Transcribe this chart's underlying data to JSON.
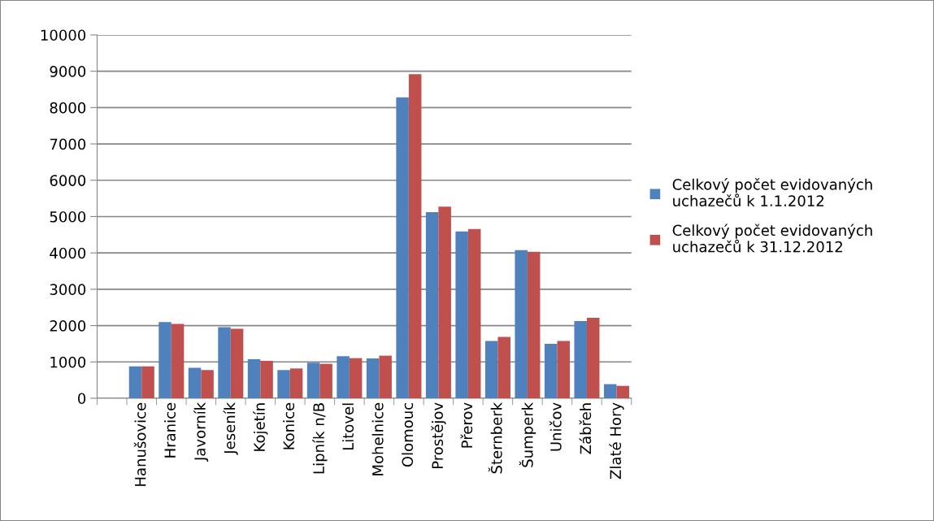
{
  "chart_data": {
    "type": "bar",
    "categories": [
      null,
      "Hanušovice",
      "Hranice",
      "Javorník",
      "Jeseník",
      "Kojetín",
      "Konice",
      "Lipník n/B",
      "Litovel",
      "Mohelnice",
      "Olomouc",
      "Prostějov",
      "Přerov",
      "Šternberk",
      "Šumperk",
      "Uničov",
      "Zábřeh",
      "Zlaté Hory"
    ],
    "series": [
      {
        "name": "Celkový počet evidovaných\nuchazečů k 1.1.2012",
        "color": "#4f81bd",
        "values": [
          null,
          880,
          2097,
          836,
          1955,
          1075,
          776,
          978,
          1157,
          1097,
          8284,
          5120,
          4590,
          1575,
          4075,
          1500,
          2127,
          388
        ]
      },
      {
        "name": "Celkový počet evidovaných\nuchazečů k 31.12.2012",
        "color": "#c0504d",
        "values": [
          null,
          880,
          2045,
          776,
          1910,
          1030,
          820,
          948,
          1104,
          1172,
          8920,
          5276,
          4657,
          1687,
          4030,
          1575,
          2216,
          343
        ]
      }
    ],
    "ylim": [
      0,
      10000
    ],
    "yticks": [
      0,
      1000,
      2000,
      3000,
      4000,
      5000,
      6000,
      7000,
      8000,
      9000,
      10000
    ],
    "grid": "y",
    "legend": "right"
  }
}
